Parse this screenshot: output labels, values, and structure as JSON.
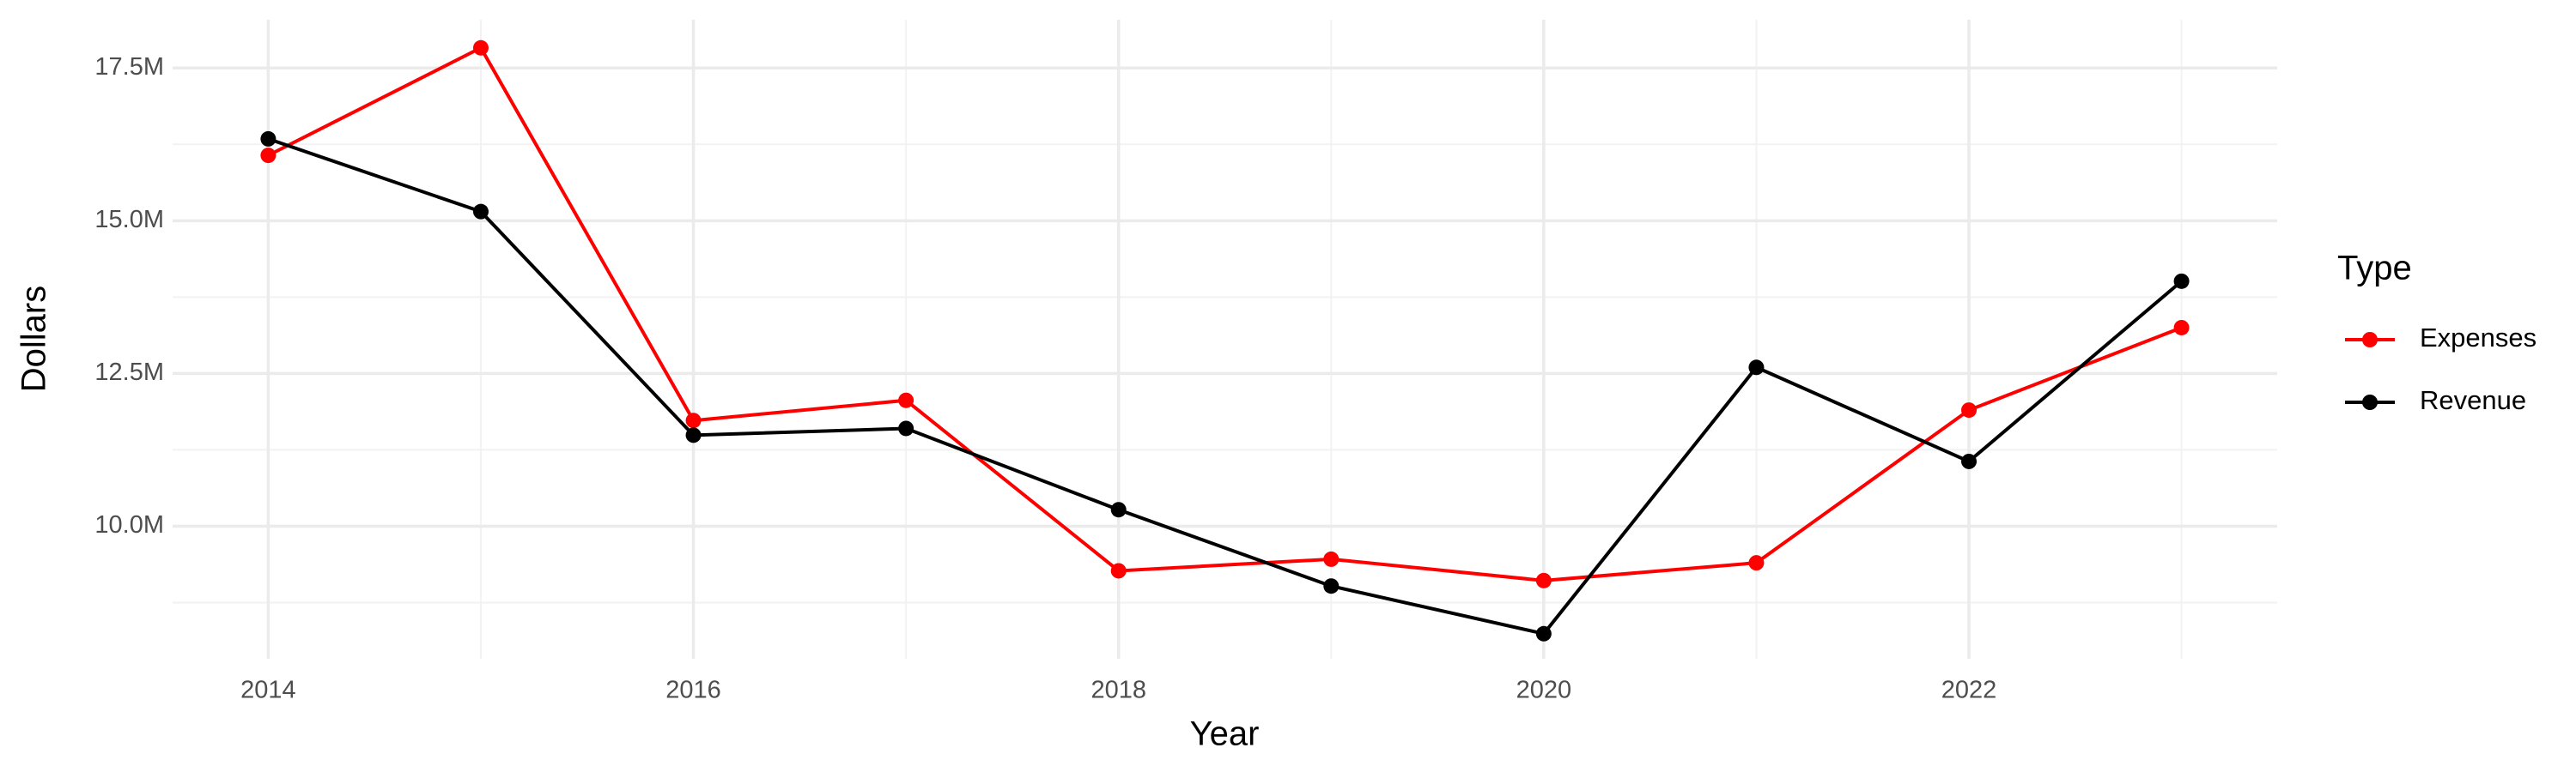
{
  "chart_data": {
    "type": "line",
    "x_label": "Year",
    "y_label": "Dollars",
    "legend_title": "Type",
    "x": [
      2014,
      2015,
      2016,
      2017,
      2018,
      2019,
      2020,
      2021,
      2022,
      2023
    ],
    "series": [
      {
        "name": "Expenses",
        "color": "#ff0000",
        "values": [
          16070000,
          17830000,
          11730000,
          12060000,
          9270000,
          9460000,
          9110000,
          9400000,
          11900000,
          13250000
        ]
      },
      {
        "name": "Revenue",
        "color": "#000000",
        "values": [
          16340000,
          15150000,
          11490000,
          11600000,
          10270000,
          9020000,
          8240000,
          12600000,
          11060000,
          14010000
        ]
      }
    ],
    "xlim": [
      2013.55,
      2023.45
    ],
    "xticks": [
      2014,
      2016,
      2018,
      2020,
      2022
    ],
    "ylim": [
      7830000,
      18290000
    ],
    "yticks": [
      {
        "value": 10000000,
        "label": "10.0M"
      },
      {
        "value": 12500000,
        "label": "12.5M"
      },
      {
        "value": 15000000,
        "label": "15.0M"
      },
      {
        "value": 17500000,
        "label": "17.5M"
      }
    ],
    "grid": true,
    "legend": "right"
  }
}
